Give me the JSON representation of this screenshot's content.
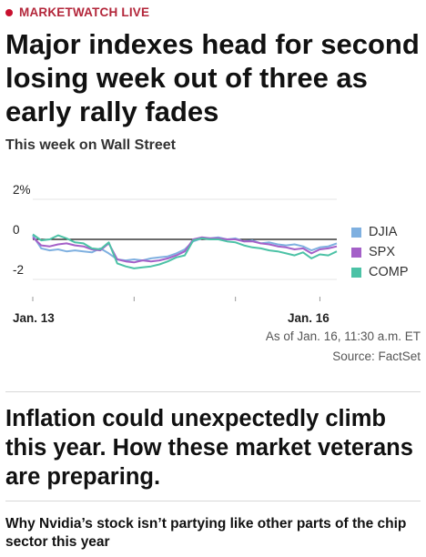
{
  "section_label": "MARKETWATCH LIVE",
  "headline": "Major indexes head for second losing week out of three as early rally fades",
  "chart_title": "This week on Wall Street",
  "chart_data": {
    "type": "line",
    "title": "This week on Wall Street",
    "xlabel": "",
    "ylabel": "",
    "ylim": [
      -2.5,
      2.5
    ],
    "yticks": [
      "2%",
      "0",
      "-2"
    ],
    "yticks_values": [
      2,
      0,
      -2
    ],
    "xticks": [
      "Jan. 13",
      "Jan. 16"
    ],
    "x": [
      0,
      0.5,
      1,
      1.5,
      2,
      2.5,
      3,
      3.5,
      4,
      4.5,
      5,
      5.5,
      6,
      6.5,
      7,
      7.5,
      8,
      8.5,
      9,
      9.5,
      10,
      10.5,
      11,
      11.5,
      12,
      12.5,
      13,
      13.5,
      14,
      14.5,
      15,
      15.5,
      16,
      16.5,
      17,
      17.5,
      18
    ],
    "legend_position": "right",
    "grid": true,
    "series": [
      {
        "name": "DJIA",
        "color": "#7fb0e0",
        "values": [
          0.2,
          -0.45,
          -0.55,
          -0.5,
          -0.6,
          -0.55,
          -0.6,
          -0.65,
          -0.45,
          -0.7,
          -1.0,
          -1.05,
          -1.0,
          -1.05,
          -0.95,
          -0.9,
          -0.85,
          -0.7,
          -0.5,
          -0.1,
          0.05,
          0.05,
          0.1,
          0.0,
          0.05,
          -0.1,
          -0.05,
          -0.2,
          -0.15,
          -0.25,
          -0.3,
          -0.25,
          -0.35,
          -0.55,
          -0.4,
          -0.35,
          -0.2
        ]
      },
      {
        "name": "SPX",
        "color": "#a460c8",
        "values": [
          0.1,
          -0.3,
          -0.35,
          -0.25,
          -0.2,
          -0.3,
          -0.35,
          -0.5,
          -0.55,
          -0.2,
          -1.0,
          -1.1,
          -1.15,
          -1.05,
          -1.1,
          -1.05,
          -0.95,
          -0.8,
          -0.6,
          0.0,
          0.1,
          0.05,
          0.05,
          0.0,
          0.0,
          -0.1,
          -0.1,
          -0.2,
          -0.25,
          -0.35,
          -0.4,
          -0.5,
          -0.45,
          -0.7,
          -0.5,
          -0.45,
          -0.35
        ]
      },
      {
        "name": "COMP",
        "color": "#4cc2a6",
        "values": [
          0.25,
          -0.05,
          0.0,
          0.2,
          0.05,
          -0.15,
          -0.2,
          -0.45,
          -0.5,
          -0.15,
          -1.2,
          -1.35,
          -1.45,
          -1.4,
          -1.35,
          -1.25,
          -1.1,
          -0.9,
          -0.8,
          -0.05,
          0.05,
          0.0,
          0.0,
          -0.1,
          -0.15,
          -0.3,
          -0.4,
          -0.45,
          -0.55,
          -0.6,
          -0.7,
          -0.8,
          -0.65,
          -0.95,
          -0.75,
          -0.8,
          -0.6
        ]
      }
    ]
  },
  "as_of": "As of Jan. 16, 11:30 a.m. ET",
  "source": "Source: FactSet",
  "story1": "Inflation could unexpectedly climb this year. How these market veterans are preparing.",
  "story2": "Why Nvidia’s stock isn’t partying like other parts of the chip sector this year"
}
